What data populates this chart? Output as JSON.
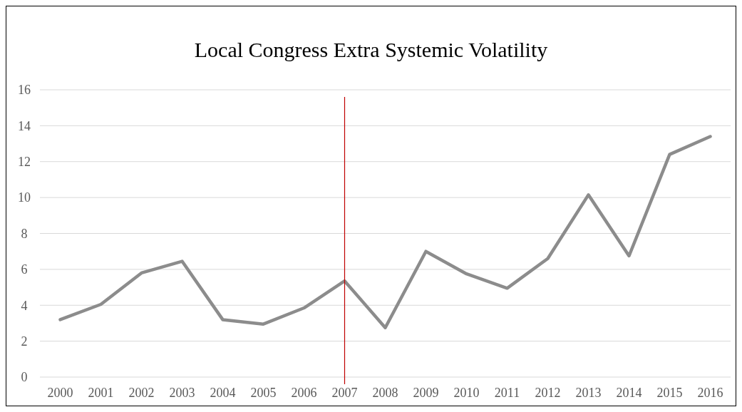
{
  "chart_data": {
    "type": "line",
    "title": "Local Congress Extra Systemic Volatility",
    "categories": [
      "2000",
      "2001",
      "2002",
      "2003",
      "2004",
      "2005",
      "2006",
      "2007",
      "2008",
      "2009",
      "2010",
      "2011",
      "2012",
      "2013",
      "2014",
      "2015",
      "2016"
    ],
    "series": [
      {
        "color": "#8c8c8c",
        "values": [
          3.2,
          4.05,
          5.8,
          6.45,
          3.2,
          2.95,
          3.85,
          5.35,
          2.75,
          7.0,
          5.75,
          4.95,
          6.6,
          10.15,
          6.75,
          12.4,
          13.4
        ]
      }
    ],
    "ylim": [
      0,
      16
    ],
    "yticks": [
      0,
      2,
      4,
      6,
      8,
      10,
      12,
      14,
      16
    ],
    "grid": "y",
    "marker": "none",
    "line_style": "solid",
    "ref_lines": [
      {
        "axis": "x",
        "value": "2007",
        "color": "#c00000"
      }
    ]
  }
}
